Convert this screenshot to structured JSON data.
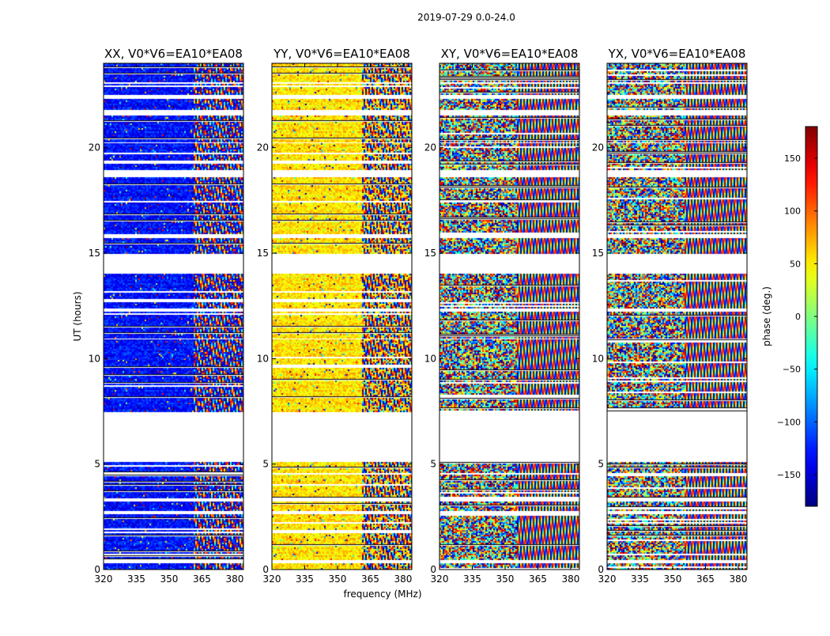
{
  "chart_data": {
    "type": "heatmap",
    "suptitle": "2019-07-29 0.0-24.0",
    "xlabel": "frequency (MHz)",
    "ylabel": "UT (hours)",
    "xlim": [
      320,
      384
    ],
    "ylim": [
      0,
      24
    ],
    "x_ticks": [
      320,
      335,
      350,
      365,
      380
    ],
    "y_ticks": [
      0,
      5,
      10,
      15,
      20
    ],
    "panels": [
      {
        "title": "XX, V0*V6=EA10*EA08",
        "base_phase": -130,
        "split_freq": 361
      },
      {
        "title": "YY, V0*V6=EA10*EA08",
        "base_phase": 55,
        "split_freq": 361
      },
      {
        "title": "XY, V0*V6=EA10*EA08",
        "base_phase": null,
        "split_freq": 355
      },
      {
        "title": "YX, V0*V6=EA10*EA08",
        "base_phase": null,
        "split_freq": 355
      }
    ],
    "data_time_ranges": [
      [
        0.0,
        0.3
      ],
      [
        0.5,
        2.6
      ],
      [
        2.8,
        3.2
      ],
      [
        3.4,
        4.5
      ],
      [
        4.6,
        5.1
      ],
      [
        7.5,
        10.9
      ],
      [
        11.0,
        12.2
      ],
      [
        12.4,
        14.0
      ],
      [
        15.0,
        15.7
      ],
      [
        15.9,
        18.6
      ],
      [
        19.0,
        20.2
      ],
      [
        20.3,
        21.5
      ],
      [
        21.8,
        22.3
      ],
      [
        22.5,
        23.0
      ],
      [
        23.1,
        24.0
      ]
    ],
    "colorbar": {
      "label": "phase (deg.)",
      "range": [
        -180,
        180
      ],
      "ticks": [
        -150,
        -100,
        -50,
        0,
        50,
        100,
        150
      ],
      "tick_labels": [
        "−150",
        "−100",
        "−50",
        "0",
        "50",
        "100",
        "150"
      ],
      "colormap": "jet"
    }
  }
}
